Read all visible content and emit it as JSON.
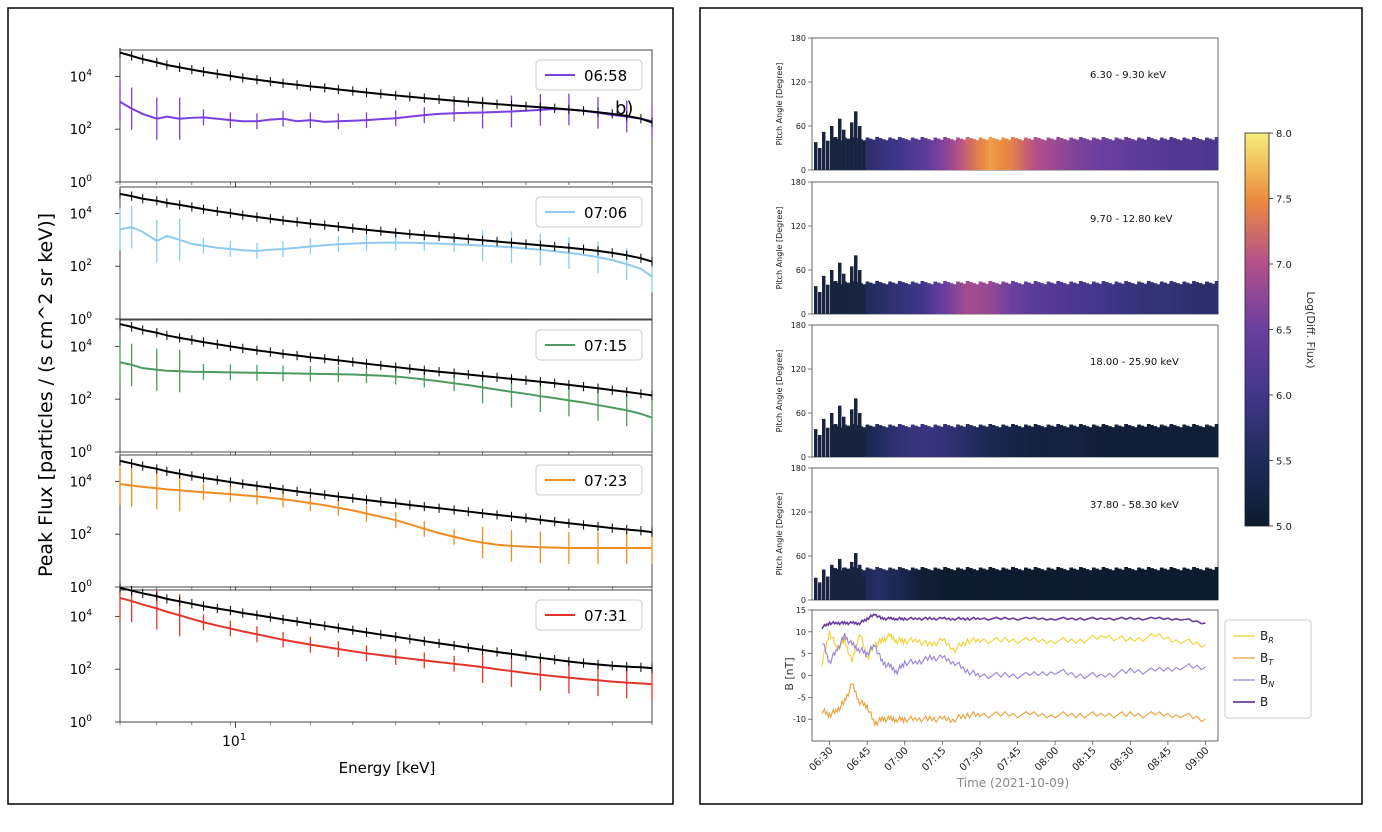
{
  "left_panel": {
    "ylabel": "Peak Flux [particles / (s cm^2 sr keV)]",
    "xlabel": "Energy [keV]",
    "x_tick_label": "10",
    "x_tick_exponent": "1",
    "y_tick_labels": [
      "10",
      "10",
      "10"
    ],
    "y_tick_exponents": [
      "0",
      "2",
      "4"
    ],
    "panel_marker": "b)"
  },
  "right_panel": {
    "pa_ylabel": "Pitch Angle [Degree]",
    "pa_ticks": [
      "0",
      "60",
      "120",
      "180"
    ],
    "colorbar_label": "Log(Diff. Flux)",
    "colorbar_ticks": [
      "5.0",
      "5.5",
      "6.0",
      "6.5",
      "7.0",
      "7.5",
      "8.0"
    ],
    "b_ylabel": "B [nT]",
    "b_ticks": [
      "-10",
      "-5",
      "0",
      "5",
      "10",
      "15"
    ],
    "time_ticks": [
      "06:30",
      "06:45",
      "07:00",
      "07:15",
      "07:30",
      "07:45",
      "08:00",
      "08:15",
      "08:30",
      "08:45",
      "09:00"
    ],
    "time_xlabel": "Time (2021-10-09)"
  },
  "colors": {
    "reference": "#000000",
    "s0658": "#7b3fe0",
    "s0706": "#8ecbf0",
    "s0715": "#4c9a5e",
    "s0723": "#f08c22",
    "s0731": "#e2352a",
    "BR": "#f2d230",
    "BT": "#eba03a",
    "BN": "#9a82dc",
    "B": "#6a3fa0"
  },
  "chart_data": [
    {
      "type": "line",
      "title": "",
      "xlabel": "Energy [keV]",
      "ylabel": "Peak Flux [particles / (s cm^2 sr keV)]",
      "x_scale": "log",
      "y_scale": "log",
      "xlim": [
        6.3,
        53
      ],
      "ylim": [
        1,
        100000
      ],
      "energies": [
        6.3,
        6.6,
        6.9,
        7.3,
        7.6,
        8.0,
        8.4,
        8.8,
        9.3,
        9.8,
        10.3,
        10.9,
        11.5,
        12.1,
        12.8,
        13.5,
        14.3,
        15.1,
        16.0,
        16.9,
        17.9,
        19.0,
        20.1,
        21.3,
        22.6,
        24.0,
        25.4,
        26.9,
        28.5,
        30.2,
        32.0,
        33.9,
        35.9,
        38.0,
        40.3,
        42.7,
        45.2,
        47.9,
        50.7,
        53.0
      ],
      "subplots": [
        {
          "legend": "06:58",
          "reference": [
            80000,
            60000,
            45000,
            34000,
            27000,
            22000,
            18000,
            15000,
            12500,
            10500,
            8800,
            7500,
            6400,
            5500,
            4800,
            4200,
            3700,
            3200,
            2800,
            2450,
            2150,
            1900,
            1700,
            1500,
            1350,
            1200,
            1080,
            980,
            890,
            810,
            740,
            680,
            620,
            560,
            500,
            440,
            380,
            320,
            250,
            180
          ],
          "values": [
            1100,
            600,
            380,
            250,
            300,
            250,
            270,
            280,
            250,
            220,
            200,
            200,
            230,
            250,
            200,
            220,
            190,
            200,
            210,
            220,
            240,
            260,
            300,
            340,
            380,
            400,
            420,
            430,
            450,
            470,
            500,
            540,
            580,
            560,
            500,
            420,
            350,
            300,
            250,
            200
          ],
          "label": "b)"
        },
        {
          "legend": "07:06",
          "reference": [
            55000,
            45000,
            36000,
            30000,
            25000,
            21000,
            17500,
            14500,
            12000,
            10200,
            8600,
            7300,
            6300,
            5400,
            4700,
            4100,
            3600,
            3150,
            2750,
            2400,
            2100,
            1850,
            1650,
            1480,
            1330,
            1190,
            1070,
            960,
            860,
            770,
            690,
            620,
            560,
            500,
            440,
            380,
            320,
            260,
            200,
            150
          ],
          "values": [
            2500,
            3000,
            2000,
            900,
            1400,
            1000,
            700,
            600,
            500,
            450,
            400,
            380,
            420,
            450,
            500,
            560,
            620,
            680,
            720,
            760,
            780,
            790,
            770,
            750,
            720,
            680,
            640,
            600,
            560,
            520,
            470,
            420,
            370,
            320,
            270,
            220,
            170,
            120,
            80,
            40
          ]
        },
        {
          "legend": "07:15",
          "reference": [
            70000,
            55000,
            42000,
            33000,
            26000,
            21000,
            17500,
            14500,
            12000,
            10000,
            8400,
            7100,
            6100,
            5200,
            4500,
            3900,
            3400,
            2950,
            2550,
            2200,
            1900,
            1650,
            1430,
            1250,
            1100,
            970,
            860,
            760,
            670,
            590,
            520,
            460,
            400,
            350,
            300,
            260,
            220,
            190,
            160,
            140
          ],
          "values": [
            2500,
            2000,
            1500,
            1300,
            1200,
            1150,
            1100,
            1080,
            1060,
            1040,
            1020,
            1000,
            980,
            960,
            940,
            920,
            900,
            880,
            860,
            820,
            780,
            720,
            640,
            560,
            480,
            400,
            340,
            280,
            230,
            190,
            160,
            130,
            110,
            90,
            75,
            60,
            48,
            38,
            28,
            20
          ]
        },
        {
          "legend": "07:23",
          "reference": [
            60000,
            48000,
            38000,
            30000,
            24000,
            19500,
            16000,
            13500,
            11300,
            9500,
            8000,
            6800,
            5800,
            4950,
            4200,
            3600,
            3100,
            2650,
            2300,
            1980,
            1700,
            1480,
            1280,
            1110,
            960,
            830,
            720,
            620,
            540,
            470,
            410,
            350,
            300,
            260,
            225,
            195,
            170,
            150,
            135,
            120
          ],
          "values": [
            8000,
            7000,
            6200,
            5500,
            5000,
            4600,
            4200,
            3900,
            3600,
            3300,
            3000,
            2700,
            2400,
            2100,
            1800,
            1500,
            1250,
            1000,
            800,
            600,
            460,
            340,
            240,
            160,
            110,
            80,
            60,
            48,
            40,
            36,
            34,
            32,
            31,
            30,
            30,
            30,
            30,
            30,
            30,
            30
          ]
        },
        {
          "legend": "07:31",
          "reference": [
            120000,
            95000,
            75000,
            58000,
            46000,
            37000,
            30000,
            24500,
            20000,
            16500,
            13500,
            11200,
            9300,
            7700,
            6400,
            5300,
            4400,
            3650,
            3000,
            2480,
            2050,
            1700,
            1400,
            1150,
            950,
            790,
            650,
            540,
            450,
            380,
            320,
            270,
            230,
            195,
            170,
            150,
            135,
            125,
            118,
            110
          ],
          "values": [
            50000,
            38000,
            28000,
            20000,
            15000,
            11000,
            8000,
            6000,
            4500,
            3500,
            2700,
            2100,
            1650,
            1300,
            1050,
            850,
            700,
            580,
            480,
            400,
            340,
            290,
            250,
            215,
            185,
            160,
            140,
            120,
            100,
            85,
            72,
            62,
            54,
            48,
            42,
            38,
            34,
            31,
            29,
            27
          ]
        }
      ]
    },
    {
      "type": "heatmap",
      "xlabel": "Time (2021-10-09)",
      "ylabel": "Pitch Angle [Degree]",
      "x_ticks": [
        "06:30",
        "06:45",
        "07:00",
        "07:15",
        "07:30",
        "07:45",
        "08:00",
        "08:15",
        "08:30",
        "08:45",
        "09:00"
      ],
      "ylim": [
        0,
        180
      ],
      "colorbar": {
        "label": "Log(Diff. Flux)",
        "range": [
          5.0,
          8.0
        ]
      },
      "pa_band_ranges": [
        "0-45",
        "0-45",
        "0-45",
        "0-45"
      ],
      "subplots": [
        {
          "label": "6.30 - 9.30 keV",
          "intensity_profile": [
            5.4,
            5.6,
            5.8,
            6.0,
            6.3,
            6.7,
            7.2,
            7.6,
            7.4,
            7.0,
            6.8,
            6.6,
            6.5,
            6.4,
            6.3,
            6.2,
            6.2,
            6.1
          ]
        },
        {
          "label": "9.70 - 12.80 keV",
          "intensity_profile": [
            5.3,
            5.4,
            5.6,
            5.8,
            6.0,
            6.5,
            6.9,
            6.8,
            6.5,
            6.3,
            6.2,
            6.1,
            6.0,
            5.9,
            5.8,
            5.8,
            5.7,
            5.7
          ]
        },
        {
          "label": "18.00 - 25.90 keV",
          "intensity_profile": [
            5.1,
            5.2,
            5.5,
            5.8,
            5.9,
            5.8,
            5.6,
            5.4,
            5.3,
            5.2,
            5.2,
            5.2,
            5.1,
            5.1,
            5.1,
            5.1,
            5.1,
            5.1
          ]
        },
        {
          "label": "37.80 - 58.30 keV",
          "intensity_profile": [
            5.1,
            5.3,
            5.6,
            5.4,
            5.1,
            5.0,
            5.0,
            5.0,
            5.0,
            5.0,
            5.0,
            5.0,
            5.0,
            5.0,
            5.0,
            5.0,
            5.0,
            5.0
          ]
        }
      ]
    },
    {
      "type": "line",
      "xlabel": "Time (2021-10-09)",
      "ylabel": "B [nT]",
      "ylim": [
        -15,
        15
      ],
      "x": [
        "06:27",
        "06:30",
        "06:33",
        "06:36",
        "06:39",
        "06:42",
        "06:45",
        "06:48",
        "06:51",
        "06:54",
        "06:57",
        "07:00",
        "07:05",
        "07:10",
        "07:15",
        "07:20",
        "07:25",
        "07:30",
        "07:40",
        "07:50",
        "08:00",
        "08:10",
        "08:20",
        "08:30",
        "08:40",
        "08:50",
        "09:00"
      ],
      "series": [
        {
          "name": "B_R",
          "values": [
            3,
            10,
            6,
            8,
            3,
            10,
            4,
            7,
            8,
            9,
            8,
            8,
            8,
            7,
            8,
            6,
            8,
            8,
            8,
            8,
            8,
            8,
            9,
            8,
            9,
            8,
            7
          ]
        },
        {
          "name": "B_T",
          "values": [
            -8,
            -9,
            -8,
            -6,
            -2,
            -6,
            -7,
            -11,
            -10,
            -10,
            -10,
            -10,
            -10,
            -10,
            -10,
            -10,
            -9,
            -9,
            -9,
            -9,
            -9,
            -9,
            -9,
            -9,
            -9,
            -9,
            -10
          ]
        },
        {
          "name": "B_N",
          "values": [
            8,
            3,
            6,
            9,
            7,
            6,
            5,
            7,
            3,
            2,
            1,
            3,
            3,
            4,
            4,
            3,
            1,
            0,
            0,
            0,
            1,
            0,
            0,
            1,
            1,
            2,
            2
          ]
        },
        {
          "name": "B",
          "values": [
            11,
            12,
            12,
            12,
            12,
            12,
            13,
            14,
            13,
            13,
            13,
            13,
            13,
            13,
            13,
            13,
            13,
            13,
            13,
            13,
            13,
            13,
            13,
            13,
            13,
            13,
            12
          ]
        }
      ]
    }
  ]
}
